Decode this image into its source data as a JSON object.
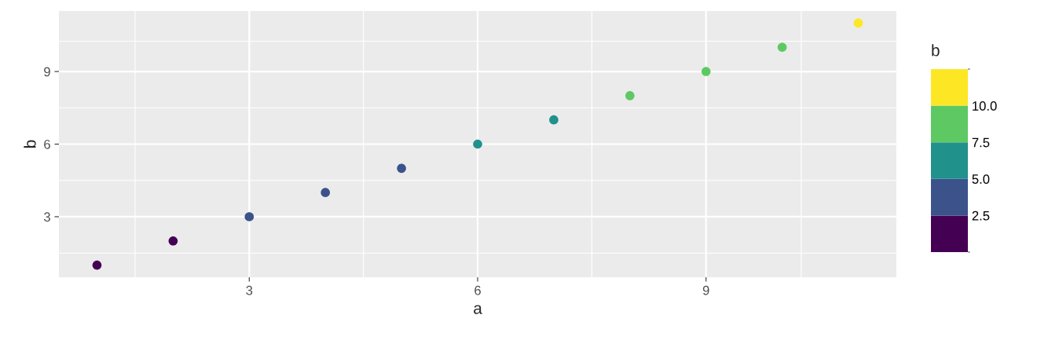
{
  "chart_data": {
    "type": "scatter",
    "xlabel": "a",
    "ylabel": "b",
    "clabel": "b",
    "x": [
      1,
      2,
      3,
      4,
      5,
      6,
      7,
      8,
      9,
      10,
      11
    ],
    "values": [
      1,
      2,
      3,
      4,
      5,
      6,
      7,
      8,
      9,
      10,
      11
    ],
    "clim": [
      0,
      12.5
    ],
    "cticks": [
      2.5,
      {
        "value": 5,
        "label": "5.0"
      },
      7.5,
      {
        "value": 10,
        "label": "10.0"
      }
    ],
    "xlim": [
      0.5,
      11.5
    ],
    "ylim": [
      0.5,
      11.5
    ],
    "xticks": [
      3,
      6,
      9
    ],
    "yticks": [
      3,
      6,
      9
    ],
    "grid": true,
    "marker": "circle"
  }
}
